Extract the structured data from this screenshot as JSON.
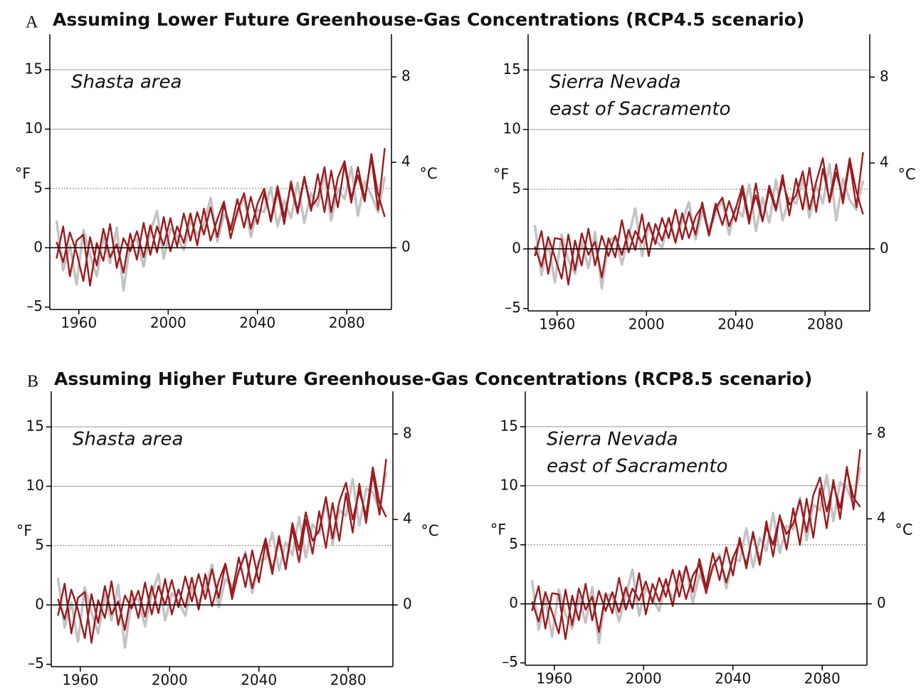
{
  "sections": [
    {
      "letter": "A",
      "title": "Assuming Lower Future Greenhouse-Gas Concentrations (RCP4.5 scenario)"
    },
    {
      "letter": "B",
      "title": "Assuming Higher Future Greenhouse-Gas Concentrations (RCP8.5 scenario)"
    }
  ],
  "chart_data": [
    {
      "type": "line",
      "annotation": [
        "Shasta area"
      ],
      "ylabel": "°F",
      "y2label": "°C",
      "xlim": [
        1947,
        2100
      ],
      "xticks": [
        1960,
        2000,
        2040,
        2080
      ],
      "ylim": [
        -5.2,
        18
      ],
      "yticks": [
        {
          "value": -5,
          "label": "–5"
        },
        0,
        5,
        10,
        15
      ],
      "y2lim": [
        -2.89,
        10
      ],
      "y2ticks": [
        0,
        4,
        8
      ],
      "grid": {
        "solid": [
          10,
          15
        ],
        "dotted": [
          5
        ]
      },
      "zero_line": true,
      "x": [
        1950,
        1953,
        1956,
        1959,
        1962,
        1965,
        1968,
        1971,
        1974,
        1977,
        1980,
        1983,
        1986,
        1989,
        1992,
        1995,
        1998,
        2001,
        2004,
        2007,
        2010,
        2013,
        2016,
        2019,
        2022,
        2025,
        2028,
        2031,
        2034,
        2037,
        2040,
        2043,
        2046,
        2049,
        2052,
        2055,
        2058,
        2061,
        2064,
        2067,
        2070,
        2073,
        2076,
        2079,
        2082,
        2085,
        2088,
        2091,
        2094,
        2097
      ],
      "series": [
        {
          "color": "#c3c3c3",
          "values": [
            2.3,
            -1.9,
            0.2,
            -3.1,
            1.5,
            -0.6,
            -2.4,
            0.9,
            -1.3,
            1.7,
            -3.6,
            0.4,
            0.7,
            -1.6,
            1.3,
            3.1,
            -0.9,
            1.6,
            1.0,
            -0.2,
            2.3,
            1.1,
            2.0,
            4.2,
            0.5,
            2.8,
            1.9,
            2.7,
            4.4,
            0.9,
            3.2,
            3.0,
            5.1,
            1.8,
            4.0,
            2.5,
            5.5,
            2.1,
            4.6,
            3.5,
            6.2,
            2.3,
            5.0,
            4.1,
            6.8,
            2.7,
            5.6,
            4.4,
            3.0,
            6.0
          ]
        },
        {
          "color": "#9b1b1e",
          "values": [
            0.5,
            -1.2,
            1.3,
            -0.4,
            -2.8,
            0.9,
            -1.5,
            1.6,
            -0.8,
            0.3,
            -2.1,
            1.2,
            -1.0,
            2.1,
            -0.6,
            1.8,
            0.2,
            2.5,
            0.1,
            2.9,
            0.6,
            3.0,
            1.1,
            3.4,
            0.9,
            3.6,
            1.5,
            4.1,
            1.7,
            4.3,
            2.0,
            4.6,
            2.4,
            5.2,
            2.6,
            5.3,
            2.9,
            5.9,
            3.1,
            6.2,
            3.0,
            6.5,
            3.4,
            7.0,
            3.8,
            6.8,
            4.1,
            7.6,
            3.2,
            8.4
          ]
        },
        {
          "color": "#9b1b1e",
          "values": [
            -0.9,
            1.8,
            -2.4,
            0.6,
            1.1,
            -3.2,
            0.4,
            -1.1,
            2.0,
            -1.7,
            0.8,
            -0.3,
            1.4,
            -0.8,
            1.9,
            -0.4,
            2.6,
            -0.3,
            1.8,
            0.4,
            2.9,
            0.2,
            3.3,
            0.6,
            2.4,
            3.9,
            0.8,
            3.1,
            4.6,
            1.6,
            3.7,
            5.0,
            2.2,
            4.8,
            2.0,
            5.6,
            3.1,
            6.0,
            3.4,
            4.2,
            6.8,
            3.0,
            5.9,
            7.3,
            4.2,
            6.1,
            3.9,
            7.9,
            4.5,
            2.6
          ]
        }
      ]
    },
    {
      "type": "line",
      "annotation": [
        "Sierra Nevada",
        "east of Sacramento"
      ],
      "ylabel": "°F",
      "y2label": "°C",
      "xlim": [
        1947,
        2100
      ],
      "xticks": [
        1960,
        2000,
        2040,
        2080
      ],
      "ylim": [
        -5.2,
        18
      ],
      "yticks": [
        {
          "value": -5,
          "label": "–5"
        },
        0,
        5,
        10,
        15
      ],
      "y2lim": [
        -2.89,
        10
      ],
      "y2ticks": [
        0,
        4,
        8
      ],
      "grid": {
        "solid": [
          10,
          15
        ],
        "dotted": [
          5
        ]
      },
      "zero_line": true,
      "x": [
        1950,
        1953,
        1956,
        1959,
        1962,
        1965,
        1968,
        1971,
        1974,
        1977,
        1980,
        1983,
        1986,
        1989,
        1992,
        1995,
        1998,
        2001,
        2004,
        2007,
        2010,
        2013,
        2016,
        2019,
        2022,
        2025,
        2028,
        2031,
        2034,
        2037,
        2040,
        2043,
        2046,
        2049,
        2052,
        2055,
        2058,
        2061,
        2064,
        2067,
        2070,
        2073,
        2076,
        2079,
        2082,
        2085,
        2088,
        2091,
        2094,
        2097
      ],
      "series": [
        {
          "color": "#c3c3c3",
          "values": [
            2.0,
            -2.2,
            0.5,
            -2.8,
            1.2,
            -0.9,
            -2.1,
            0.6,
            -1.6,
            1.4,
            -3.3,
            0.7,
            1.0,
            -1.3,
            1.0,
            3.4,
            -0.6,
            1.9,
            0.7,
            0.1,
            2.6,
            0.8,
            2.3,
            3.9,
            0.8,
            3.1,
            1.6,
            3.0,
            4.1,
            1.2,
            3.5,
            2.7,
            5.4,
            1.5,
            4.3,
            2.2,
            5.8,
            2.4,
            4.3,
            3.8,
            5.9,
            2.6,
            5.3,
            3.8,
            7.1,
            2.4,
            5.9,
            4.1,
            3.3,
            5.7
          ]
        },
        {
          "color": "#9b1b1e",
          "values": [
            0.2,
            -1.5,
            1.0,
            -0.7,
            -2.5,
            1.2,
            -1.8,
            1.3,
            -0.5,
            0.6,
            -2.4,
            0.9,
            -0.7,
            2.4,
            -0.3,
            1.5,
            0.5,
            2.2,
            0.4,
            2.6,
            0.9,
            3.3,
            0.8,
            3.1,
            1.2,
            3.9,
            1.2,
            3.8,
            2.0,
            4.0,
            2.3,
            4.9,
            2.1,
            5.5,
            2.3,
            5.0,
            3.2,
            6.2,
            2.8,
            5.9,
            3.3,
            6.8,
            3.1,
            6.7,
            4.1,
            7.1,
            3.8,
            7.3,
            3.5,
            8.1
          ]
        },
        {
          "color": "#9b1b1e",
          "values": [
            -0.6,
            1.5,
            -2.1,
            0.9,
            0.8,
            -3.0,
            0.7,
            -1.4,
            1.7,
            -1.4,
            1.1,
            -0.6,
            1.1,
            -0.5,
            1.6,
            -0.1,
            2.9,
            -0.6,
            2.1,
            0.7,
            2.6,
            0.5,
            3.0,
            0.9,
            2.7,
            3.6,
            1.1,
            3.4,
            4.3,
            1.9,
            3.4,
            5.3,
            2.5,
            4.5,
            2.3,
            5.3,
            3.4,
            5.7,
            3.7,
            4.5,
            6.5,
            3.3,
            5.6,
            7.6,
            3.9,
            6.4,
            4.2,
            7.6,
            4.8,
            2.9
          ]
        }
      ]
    },
    {
      "type": "line",
      "annotation": [
        "Shasta area"
      ],
      "ylabel": "°F",
      "y2label": "°C",
      "xlim": [
        1947,
        2100
      ],
      "xticks": [
        1960,
        2000,
        2040,
        2080
      ],
      "ylim": [
        -5.2,
        18
      ],
      "yticks": [
        {
          "value": -5,
          "label": "–5"
        },
        0,
        5,
        10,
        15
      ],
      "y2lim": [
        -2.89,
        10
      ],
      "y2ticks": [
        0,
        4,
        8
      ],
      "grid": {
        "solid": [
          10,
          15
        ],
        "dotted": [
          5
        ]
      },
      "zero_line": true,
      "x": [
        1950,
        1953,
        1956,
        1959,
        1962,
        1965,
        1968,
        1971,
        1974,
        1977,
        1980,
        1983,
        1986,
        1989,
        1992,
        1995,
        1998,
        2001,
        2004,
        2007,
        2010,
        2013,
        2016,
        2019,
        2022,
        2025,
        2028,
        2031,
        2034,
        2037,
        2040,
        2043,
        2046,
        2049,
        2052,
        2055,
        2058,
        2061,
        2064,
        2067,
        2070,
        2073,
        2076,
        2079,
        2082,
        2085,
        2088,
        2091,
        2094,
        2097
      ],
      "series": [
        {
          "color": "#c3c3c3",
          "values": [
            2.3,
            -1.9,
            0.2,
            -3.1,
            1.5,
            -0.6,
            -2.4,
            0.9,
            -1.3,
            1.7,
            -3.6,
            0.4,
            0.5,
            -1.8,
            0.9,
            2.6,
            -1.3,
            1.0,
            0.3,
            -0.9,
            1.5,
            0.2,
            1.4,
            3.4,
            -0.2,
            2.2,
            1.6,
            2.7,
            4.5,
            1.0,
            3.7,
            3.9,
            6.1,
            2.9,
            5.3,
            4.2,
            7.4,
            4.0,
            6.8,
            6.0,
            8.7,
            5.1,
            8.0,
            7.5,
            10.6,
            6.7,
            9.8,
            9.5,
            8.0,
            11.2
          ]
        },
        {
          "color": "#9b1b1e",
          "values": [
            0.5,
            -1.2,
            1.3,
            -0.4,
            -2.8,
            0.9,
            -1.5,
            1.6,
            -0.8,
            0.3,
            -2.1,
            1.2,
            -1.1,
            1.9,
            -0.8,
            1.6,
            0.0,
            2.1,
            -0.2,
            2.4,
            0.3,
            2.6,
            0.5,
            3.0,
            0.6,
            3.4,
            1.0,
            4.0,
            1.5,
            4.6,
            1.9,
            5.2,
            2.6,
            5.8,
            3.0,
            6.5,
            3.6,
            7.2,
            4.3,
            7.9,
            4.8,
            8.6,
            5.4,
            9.4,
            6.1,
            10.2,
            6.9,
            11.1,
            7.6,
            12.3
          ]
        },
        {
          "color": "#9b1b1e",
          "values": [
            -0.9,
            1.8,
            -2.4,
            0.6,
            1.1,
            -3.2,
            0.4,
            -1.1,
            2.0,
            -1.7,
            0.8,
            -0.3,
            1.2,
            -1.0,
            1.6,
            -0.7,
            2.2,
            -0.8,
            1.3,
            -0.2,
            2.3,
            -0.4,
            2.6,
            -0.1,
            2.0,
            3.5,
            0.5,
            2.9,
            4.3,
            1.4,
            3.6,
            5.6,
            2.9,
            5.5,
            3.1,
            6.9,
            4.6,
            7.8,
            5.4,
            6.3,
            9.1,
            5.6,
            8.7,
            10.3,
            7.2,
            9.6,
            7.5,
            11.6,
            8.6,
            7.4
          ]
        }
      ]
    },
    {
      "type": "line",
      "annotation": [
        "Sierra Nevada",
        "east of Sacramento"
      ],
      "ylabel": "°F",
      "y2label": "°C",
      "xlim": [
        1947,
        2100
      ],
      "xticks": [
        1960,
        2000,
        2040,
        2080
      ],
      "ylim": [
        -5.2,
        18
      ],
      "yticks": [
        {
          "value": -5,
          "label": "–5"
        },
        0,
        5,
        10,
        15
      ],
      "y2lim": [
        -2.89,
        10
      ],
      "y2ticks": [
        0,
        4,
        8
      ],
      "grid": {
        "solid": [
          10,
          15
        ],
        "dotted": [
          5
        ]
      },
      "zero_line": true,
      "x": [
        1950,
        1953,
        1956,
        1959,
        1962,
        1965,
        1968,
        1971,
        1974,
        1977,
        1980,
        1983,
        1986,
        1989,
        1992,
        1995,
        1998,
        2001,
        2004,
        2007,
        2010,
        2013,
        2016,
        2019,
        2022,
        2025,
        2028,
        2031,
        2034,
        2037,
        2040,
        2043,
        2046,
        2049,
        2052,
        2055,
        2058,
        2061,
        2064,
        2067,
        2070,
        2073,
        2076,
        2079,
        2082,
        2085,
        2088,
        2091,
        2094,
        2097
      ],
      "series": [
        {
          "color": "#c3c3c3",
          "values": [
            2.0,
            -2.2,
            0.5,
            -2.8,
            1.2,
            -0.9,
            -2.1,
            0.6,
            -1.6,
            1.4,
            -3.3,
            0.7,
            0.8,
            -1.5,
            0.7,
            2.9,
            -1.0,
            1.4,
            0.4,
            -0.6,
            1.9,
            0.4,
            1.7,
            3.1,
            0.1,
            2.5,
            1.3,
            3.0,
            4.2,
            1.3,
            3.9,
            3.6,
            6.4,
            3.1,
            5.6,
            4.5,
            7.7,
            4.3,
            6.6,
            6.3,
            9.0,
            5.4,
            8.4,
            7.9,
            10.9,
            7.0,
            10.3,
            9.8,
            8.4,
            11.6
          ]
        },
        {
          "color": "#9b1b1e",
          "values": [
            0.2,
            -1.5,
            1.0,
            -0.7,
            -2.5,
            1.2,
            -1.8,
            1.3,
            -0.5,
            0.6,
            -2.4,
            0.9,
            -0.8,
            2.2,
            -0.5,
            1.3,
            0.3,
            1.9,
            0.1,
            2.2,
            0.6,
            2.9,
            0.6,
            3.2,
            1.0,
            3.8,
            1.4,
            4.3,
            2.0,
            4.8,
            2.4,
            5.6,
            3.0,
            6.1,
            3.3,
            7.0,
            4.0,
            7.5,
            4.6,
            8.1,
            5.0,
            8.9,
            5.6,
            9.8,
            6.4,
            10.5,
            7.2,
            11.6,
            8.0,
            13.1
          ]
        },
        {
          "color": "#9b1b1e",
          "values": [
            -0.6,
            1.5,
            -2.1,
            0.9,
            0.8,
            -3.0,
            0.7,
            -1.4,
            1.7,
            -1.4,
            1.1,
            -0.6,
            1.0,
            -0.7,
            1.4,
            -0.4,
            2.6,
            -0.9,
            1.7,
            0.2,
            2.1,
            -0.2,
            2.8,
            0.4,
            2.4,
            3.3,
            0.9,
            3.2,
            4.0,
            1.8,
            3.9,
            5.2,
            3.3,
            5.9,
            3.6,
            6.5,
            5.0,
            7.4,
            5.9,
            6.8,
            8.8,
            6.1,
            9.2,
            10.7,
            7.8,
            10.1,
            8.1,
            11.3,
            9.0,
            8.2
          ]
        }
      ]
    }
  ]
}
